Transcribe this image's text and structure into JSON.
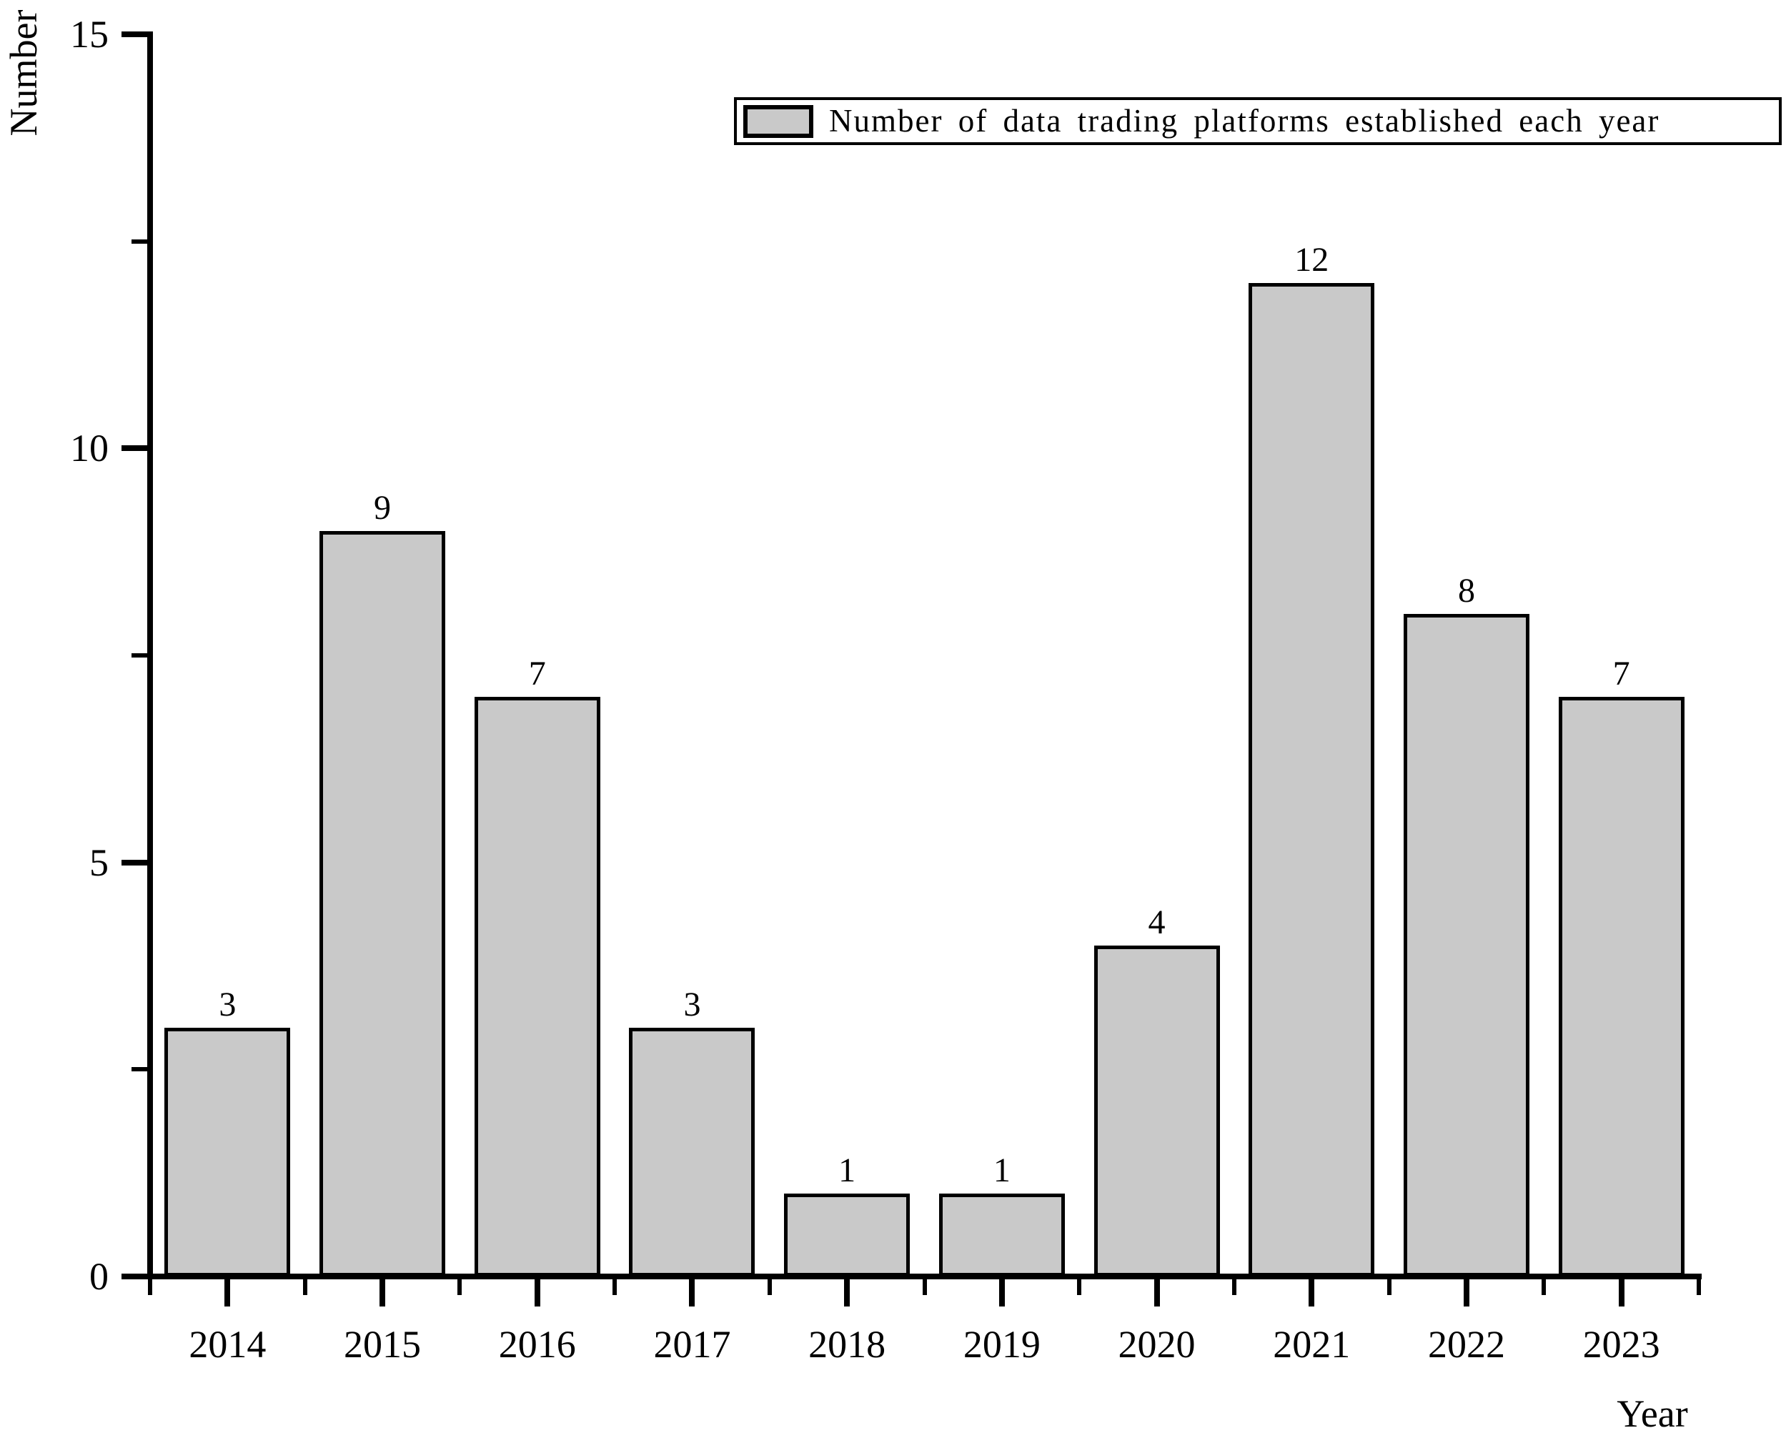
{
  "chart_data": {
    "type": "bar",
    "categories": [
      "2014",
      "2015",
      "2016",
      "2017",
      "2018",
      "2019",
      "2020",
      "2021",
      "2022",
      "2023"
    ],
    "values": [
      3,
      9,
      7,
      3,
      1,
      1,
      4,
      12,
      8,
      7
    ],
    "series_name": "Number of data trading platforms established each year",
    "title": "",
    "xlabel": "Year",
    "ylabel": "Number",
    "ylim": [
      0,
      15
    ],
    "y_major_ticks": [
      0,
      5,
      10,
      15
    ],
    "y_minor_ticks": [
      2.5,
      7.5,
      12.5
    ],
    "grid": false,
    "legend_position": "top-right",
    "bar_fill_color": "#c9c9c9",
    "bar_border_color": "#000000",
    "axis_color": "#000000",
    "background_color": "#ffffff",
    "value_labels": [
      "3",
      "9",
      "7",
      "3",
      "1",
      "1",
      "4",
      "12",
      "8",
      "7"
    ]
  },
  "legend": {
    "label": "Number of data trading platforms established each year"
  },
  "axes": {
    "x_title": "Year",
    "y_title": "Number",
    "y_tick_labels": [
      "0",
      "5",
      "10",
      "15"
    ]
  }
}
